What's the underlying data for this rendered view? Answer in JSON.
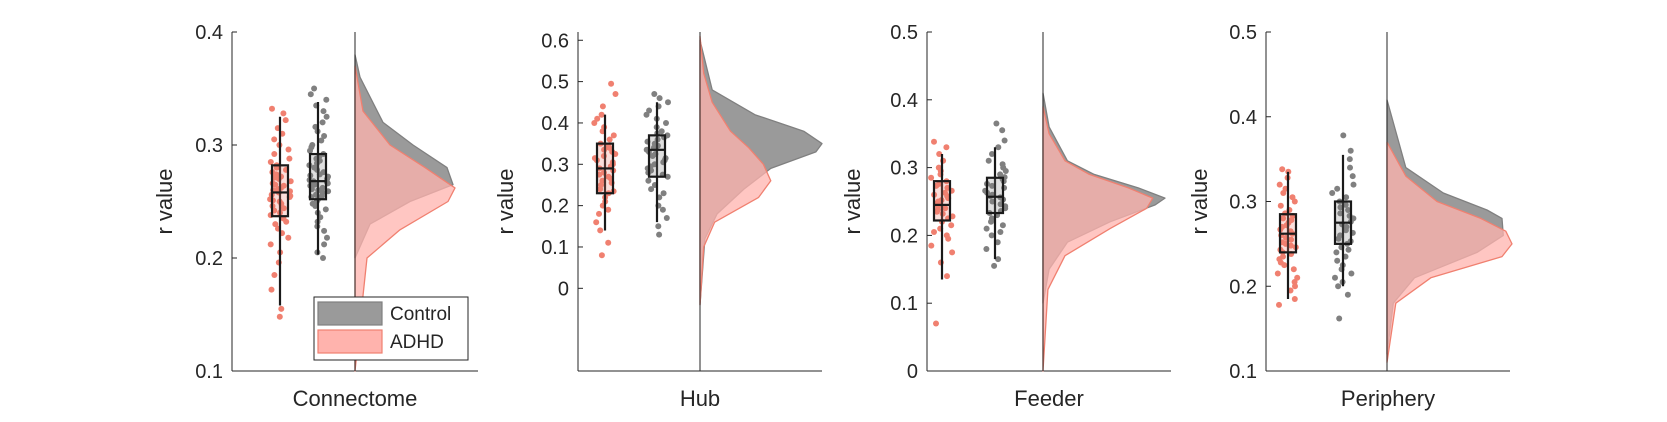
{
  "colors": {
    "control": "#808080",
    "control_fill": "#9a9a9a",
    "adhd": "#f08070",
    "adhd_fill": "#ffb3ad",
    "axis": "#262626",
    "box_edge": "#1a1a1a"
  },
  "legend": {
    "location": "bottom-right of first panel",
    "entries": [
      {
        "label": "Control",
        "series": "control"
      },
      {
        "label": "ADHD",
        "series": "adhd"
      }
    ]
  },
  "chart_data": [
    {
      "type": "raincloud",
      "xlabel": "Connectome",
      "ylabel": "r value",
      "ylim": [
        0.1,
        0.4
      ],
      "yticks": [
        "0.1",
        "0.2",
        "0.3",
        "0.4"
      ],
      "series": [
        {
          "name": "ADHD",
          "box": {
            "min": 0.158,
            "q1": 0.237,
            "median": 0.258,
            "q3": 0.282,
            "max": 0.325
          },
          "density_y": [
            0.1,
            0.2,
            0.225,
            0.25,
            0.262,
            0.28,
            0.3,
            0.33,
            0.37
          ],
          "density_rel": [
            0.0,
            0.12,
            0.45,
            0.93,
            1.0,
            0.7,
            0.35,
            0.08,
            0.0
          ]
        },
        {
          "name": "Control",
          "box": {
            "min": 0.203,
            "q1": 0.252,
            "median": 0.268,
            "q3": 0.292,
            "max": 0.338
          },
          "density_y": [
            0.2,
            0.23,
            0.25,
            0.265,
            0.28,
            0.3,
            0.32,
            0.36,
            0.38
          ],
          "density_rel": [
            0.0,
            0.15,
            0.55,
            0.98,
            0.92,
            0.58,
            0.28,
            0.05,
            0.0
          ]
        }
      ],
      "points": {
        "ADHD": [
          0.148,
          0.155,
          0.172,
          0.185,
          0.196,
          0.205,
          0.212,
          0.218,
          0.222,
          0.226,
          0.23,
          0.232,
          0.235,
          0.238,
          0.24,
          0.242,
          0.244,
          0.246,
          0.248,
          0.25,
          0.251,
          0.252,
          0.254,
          0.255,
          0.256,
          0.258,
          0.259,
          0.26,
          0.261,
          0.262,
          0.264,
          0.265,
          0.266,
          0.268,
          0.27,
          0.271,
          0.272,
          0.274,
          0.276,
          0.278,
          0.28,
          0.282,
          0.285,
          0.288,
          0.292,
          0.296,
          0.3,
          0.305,
          0.31,
          0.315,
          0.322,
          0.328,
          0.332
        ],
        "Control": [
          0.2,
          0.205,
          0.212,
          0.218,
          0.224,
          0.228,
          0.232,
          0.236,
          0.24,
          0.243,
          0.246,
          0.248,
          0.25,
          0.252,
          0.254,
          0.255,
          0.256,
          0.258,
          0.259,
          0.26,
          0.261,
          0.262,
          0.263,
          0.264,
          0.265,
          0.266,
          0.267,
          0.268,
          0.269,
          0.27,
          0.272,
          0.273,
          0.274,
          0.276,
          0.278,
          0.28,
          0.282,
          0.284,
          0.286,
          0.288,
          0.29,
          0.292,
          0.295,
          0.298,
          0.3,
          0.304,
          0.308,
          0.312,
          0.316,
          0.32,
          0.325,
          0.33,
          0.335,
          0.34,
          0.345,
          0.35
        ]
      }
    },
    {
      "type": "raincloud",
      "xlabel": "Hub",
      "ylabel": "r value",
      "ylim": [
        -0.2,
        0.62
      ],
      "yticks": [
        "0",
        "0.1",
        "0.2",
        "0.3",
        "0.4",
        "0.5",
        "0.6"
      ],
      "series": [
        {
          "name": "ADHD",
          "box": {
            "min": 0.14,
            "q1": 0.23,
            "median": 0.29,
            "q3": 0.35,
            "max": 0.42
          },
          "density_y": [
            -0.04,
            0.1,
            0.16,
            0.22,
            0.26,
            0.3,
            0.34,
            0.38,
            0.45,
            0.52,
            0.61
          ],
          "density_rel": [
            0.0,
            0.03,
            0.12,
            0.48,
            0.58,
            0.52,
            0.4,
            0.25,
            0.1,
            0.03,
            0.0
          ]
        },
        {
          "name": "Control",
          "box": {
            "min": 0.16,
            "q1": 0.27,
            "median": 0.335,
            "q3": 0.37,
            "max": 0.45
          },
          "density_y": [
            -0.04,
            0.12,
            0.18,
            0.24,
            0.29,
            0.33,
            0.35,
            0.38,
            0.42,
            0.48,
            0.6
          ],
          "density_rel": [
            0.0,
            0.04,
            0.14,
            0.36,
            0.58,
            0.95,
            1.0,
            0.85,
            0.45,
            0.1,
            0.0
          ]
        }
      ],
      "points": {
        "ADHD": [
          0.08,
          0.11,
          0.14,
          0.16,
          0.18,
          0.19,
          0.2,
          0.21,
          0.22,
          0.23,
          0.235,
          0.24,
          0.25,
          0.255,
          0.26,
          0.265,
          0.27,
          0.275,
          0.28,
          0.285,
          0.29,
          0.295,
          0.3,
          0.305,
          0.31,
          0.315,
          0.32,
          0.325,
          0.33,
          0.335,
          0.34,
          0.345,
          0.35,
          0.36,
          0.37,
          0.38,
          0.39,
          0.4,
          0.41,
          0.42,
          0.44,
          0.47,
          0.495
        ],
        "Control": [
          0.13,
          0.15,
          0.17,
          0.19,
          0.2,
          0.22,
          0.23,
          0.24,
          0.25,
          0.26,
          0.27,
          0.275,
          0.28,
          0.285,
          0.29,
          0.295,
          0.3,
          0.305,
          0.31,
          0.315,
          0.32,
          0.325,
          0.33,
          0.335,
          0.34,
          0.345,
          0.35,
          0.355,
          0.36,
          0.365,
          0.37,
          0.375,
          0.38,
          0.39,
          0.4,
          0.41,
          0.42,
          0.43,
          0.44,
          0.45,
          0.46,
          0.47
        ]
      }
    },
    {
      "type": "raincloud",
      "xlabel": "Feeder",
      "ylabel": "r value",
      "ylim": [
        0,
        0.5
      ],
      "yticks": [
        "0",
        "0.1",
        "0.2",
        "0.3",
        "0.4",
        "0.5"
      ],
      "series": [
        {
          "name": "ADHD",
          "box": {
            "min": 0.135,
            "q1": 0.222,
            "median": 0.245,
            "q3": 0.28,
            "max": 0.32
          },
          "density_y": [
            0.0,
            0.12,
            0.17,
            0.21,
            0.24,
            0.255,
            0.27,
            0.29,
            0.31,
            0.35,
            0.39
          ],
          "density_rel": [
            0.0,
            0.04,
            0.18,
            0.55,
            0.85,
            0.9,
            0.7,
            0.38,
            0.18,
            0.05,
            0.0
          ]
        },
        {
          "name": "Control",
          "box": {
            "min": 0.165,
            "q1": 0.233,
            "median": 0.257,
            "q3": 0.285,
            "max": 0.33
          },
          "density_y": [
            0.1,
            0.15,
            0.19,
            0.22,
            0.245,
            0.255,
            0.27,
            0.29,
            0.31,
            0.36,
            0.41
          ],
          "density_rel": [
            0.0,
            0.05,
            0.2,
            0.55,
            0.92,
            1.0,
            0.78,
            0.42,
            0.2,
            0.05,
            0.0
          ]
        }
      ],
      "points": {
        "ADHD": [
          0.07,
          0.14,
          0.16,
          0.175,
          0.185,
          0.195,
          0.2,
          0.205,
          0.21,
          0.215,
          0.22,
          0.225,
          0.228,
          0.232,
          0.235,
          0.238,
          0.24,
          0.243,
          0.245,
          0.247,
          0.25,
          0.252,
          0.255,
          0.258,
          0.26,
          0.263,
          0.266,
          0.27,
          0.273,
          0.276,
          0.28,
          0.285,
          0.29,
          0.295,
          0.3,
          0.31,
          0.32,
          0.33,
          0.338
        ],
        "Control": [
          0.155,
          0.165,
          0.18,
          0.19,
          0.2,
          0.205,
          0.21,
          0.215,
          0.22,
          0.225,
          0.23,
          0.233,
          0.236,
          0.24,
          0.243,
          0.246,
          0.25,
          0.253,
          0.256,
          0.258,
          0.26,
          0.263,
          0.266,
          0.27,
          0.273,
          0.276,
          0.28,
          0.283,
          0.286,
          0.29,
          0.295,
          0.3,
          0.305,
          0.31,
          0.32,
          0.33,
          0.34,
          0.355,
          0.365
        ]
      }
    },
    {
      "type": "raincloud",
      "xlabel": "Periphery",
      "ylabel": "r value",
      "ylim": [
        0.1,
        0.5
      ],
      "yticks": [
        "0.1",
        "0.2",
        "0.3",
        "0.4",
        "0.5"
      ],
      "series": [
        {
          "name": "ADHD",
          "box": {
            "min": 0.185,
            "q1": 0.24,
            "median": 0.262,
            "q3": 0.285,
            "max": 0.335
          },
          "density_y": [
            0.11,
            0.18,
            0.21,
            0.235,
            0.25,
            0.265,
            0.28,
            0.3,
            0.33,
            0.37
          ],
          "density_rel": [
            0.0,
            0.07,
            0.35,
            0.92,
            1.0,
            0.95,
            0.75,
            0.4,
            0.15,
            0.0
          ]
        },
        {
          "name": "Control",
          "box": {
            "min": 0.2,
            "q1": 0.25,
            "median": 0.275,
            "q3": 0.3,
            "max": 0.355
          },
          "density_y": [
            0.12,
            0.18,
            0.21,
            0.24,
            0.26,
            0.28,
            0.29,
            0.31,
            0.34,
            0.42
          ],
          "density_rel": [
            0.0,
            0.05,
            0.22,
            0.72,
            0.93,
            0.92,
            0.8,
            0.45,
            0.15,
            0.0
          ]
        }
      ],
      "points": {
        "ADHD": [
          0.178,
          0.185,
          0.195,
          0.2,
          0.205,
          0.21,
          0.215,
          0.22,
          0.225,
          0.228,
          0.232,
          0.235,
          0.238,
          0.24,
          0.243,
          0.246,
          0.248,
          0.25,
          0.252,
          0.255,
          0.257,
          0.26,
          0.262,
          0.265,
          0.267,
          0.27,
          0.272,
          0.275,
          0.278,
          0.28,
          0.283,
          0.286,
          0.29,
          0.295,
          0.3,
          0.305,
          0.31,
          0.315,
          0.32,
          0.328,
          0.335,
          0.338
        ],
        "Control": [
          0.162,
          0.19,
          0.2,
          0.205,
          0.21,
          0.215,
          0.22,
          0.225,
          0.23,
          0.235,
          0.24,
          0.243,
          0.246,
          0.25,
          0.253,
          0.256,
          0.26,
          0.263,
          0.266,
          0.27,
          0.273,
          0.276,
          0.28,
          0.283,
          0.286,
          0.29,
          0.293,
          0.296,
          0.3,
          0.305,
          0.31,
          0.315,
          0.32,
          0.33,
          0.34,
          0.35,
          0.36,
          0.378
        ]
      }
    }
  ]
}
